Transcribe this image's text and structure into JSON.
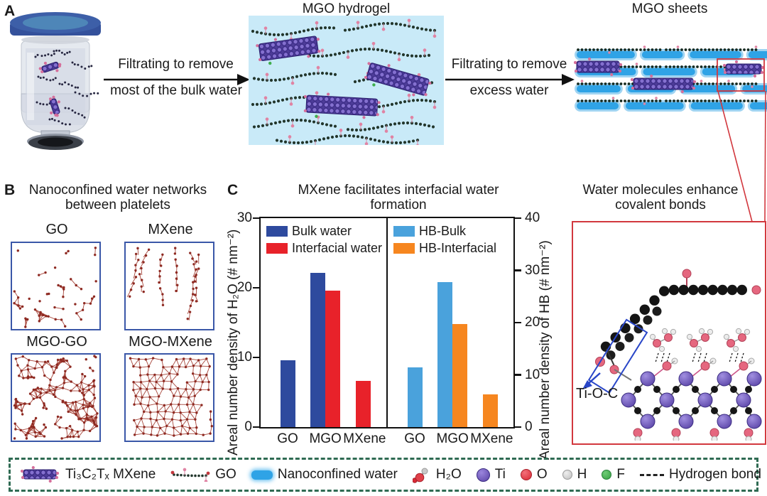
{
  "figure": {
    "panel_a": {
      "label": "A",
      "step1_line1": "Filtrating to remove",
      "step1_line2": "most of the bulk water",
      "hydrogel_title": "MGO hydrogel",
      "step2_line1": "Filtrating to remove",
      "step2_line2": "excess water",
      "sheets_title": "MGO sheets"
    },
    "panel_b": {
      "label": "B",
      "title_line1": "Nanoconfined water networks",
      "title_line2": "between platelets",
      "boxes": [
        {
          "label": "GO"
        },
        {
          "label": "MXene"
        },
        {
          "label": "MGO-GO"
        },
        {
          "label": "MGO-MXene"
        }
      ]
    },
    "panel_c": {
      "label": "C",
      "title_line1": "MXene facilitates interfacial water",
      "title_line2": "formation"
    },
    "panel_d": {
      "title_line1": "Water molecules enhance",
      "title_line2": "covalent bonds",
      "bond_label": "Ti-O-C"
    },
    "legend": {
      "items": [
        {
          "name": "mxene",
          "label": "Ti₃C₂Tₓ MXene"
        },
        {
          "name": "go",
          "label": "GO"
        },
        {
          "name": "nanoconfined-water",
          "label": "Nanoconfined water"
        },
        {
          "name": "h2o",
          "label": "H₂O"
        },
        {
          "name": "ti",
          "label": "Ti"
        },
        {
          "name": "o",
          "label": "O"
        },
        {
          "name": "h",
          "label": "H"
        },
        {
          "name": "f",
          "label": "F"
        },
        {
          "name": "hydrogen-bond",
          "label": "Hydrogen bond"
        }
      ]
    }
  },
  "chart_data": {
    "type": "bar",
    "title": "MXene facilitates interfacial water formation",
    "categories": [
      "GO",
      "MGO",
      "MXene"
    ],
    "grid": false,
    "legend_position": "top-inside",
    "left_axis": {
      "ylabel": "Areal number density of H₂O (# nm⁻²)",
      "ylim": [
        0,
        30
      ],
      "yticks": [
        0,
        10,
        20,
        30
      ],
      "series": [
        {
          "name": "Bulk water",
          "color": "#2E4A9E",
          "values": [
            9.6,
            22.1,
            null
          ]
        },
        {
          "name": "Interfacial water",
          "color": "#E8222A",
          "values": [
            null,
            19.6,
            6.6
          ]
        }
      ]
    },
    "right_axis": {
      "ylabel": "Areal number density of HB (# nm⁻²)",
      "ylim": [
        0,
        40
      ],
      "yticks": [
        0,
        10,
        20,
        30,
        40
      ],
      "series": [
        {
          "name": "HB-Bulk",
          "color": "#4AA2DC",
          "values": [
            11.4,
            27.8,
            null
          ]
        },
        {
          "name": "HB-Interfacial",
          "color": "#F6861F",
          "values": [
            null,
            19.7,
            6.3
          ]
        }
      ]
    }
  }
}
